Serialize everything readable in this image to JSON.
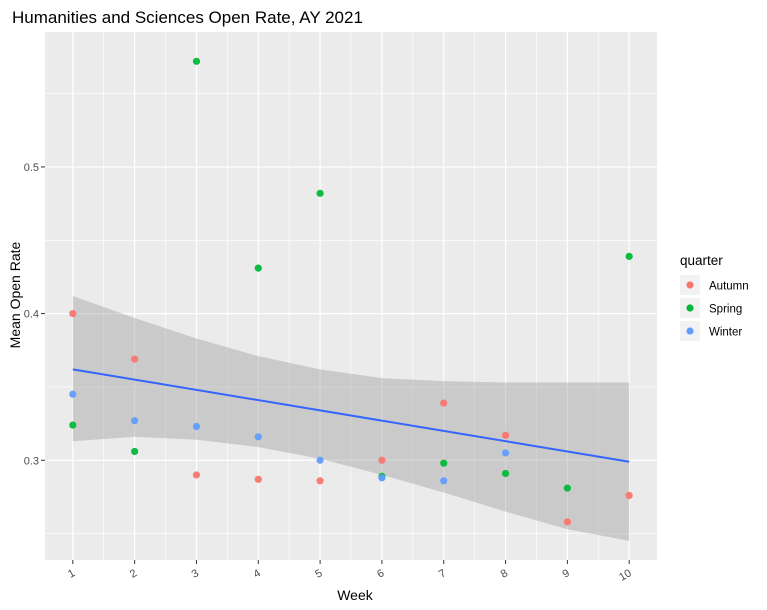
{
  "chart_data": {
    "type": "scatter",
    "title": "Humanities and Sciences Open Rate, AY 2021",
    "xlabel": "Week",
    "ylabel": "Mean Open Rate",
    "xlim": [
      0.55,
      10.45
    ],
    "ylim": [
      0.232,
      0.592
    ],
    "x_ticks": [
      1,
      2,
      3,
      4,
      5,
      6,
      7,
      8,
      9,
      10
    ],
    "y_ticks": [
      0.3,
      0.4,
      0.5
    ],
    "y_tick_labels": [
      "0.3",
      "0.4",
      "0.5"
    ],
    "grid": true,
    "legend": {
      "title": "quarter",
      "position": "right",
      "entries": [
        "Autumn",
        "Spring",
        "Winter"
      ]
    },
    "series": [
      {
        "name": "Autumn",
        "color": "#F8766D",
        "points": [
          [
            1,
            0.4
          ],
          [
            2,
            0.369
          ],
          [
            3,
            0.29
          ],
          [
            4,
            0.287
          ],
          [
            5,
            0.286
          ],
          [
            6,
            0.3
          ],
          [
            7,
            0.339
          ],
          [
            8,
            0.317
          ],
          [
            9,
            0.258
          ],
          [
            10,
            0.276
          ]
        ]
      },
      {
        "name": "Spring",
        "color": "#00BA38",
        "points": [
          [
            1,
            0.324
          ],
          [
            2,
            0.306
          ],
          [
            3,
            0.572
          ],
          [
            4,
            0.431
          ],
          [
            5,
            0.482
          ],
          [
            6,
            0.289
          ],
          [
            7,
            0.298
          ],
          [
            8,
            0.291
          ],
          [
            9,
            0.281
          ],
          [
            10,
            0.439
          ]
        ]
      },
      {
        "name": "Winter",
        "color": "#619CFF",
        "points": [
          [
            1,
            0.345
          ],
          [
            2,
            0.327
          ],
          [
            3,
            0.323
          ],
          [
            4,
            0.316
          ],
          [
            5,
            0.3
          ],
          [
            6,
            0.288
          ],
          [
            7,
            0.286
          ],
          [
            8,
            0.305
          ]
        ]
      }
    ],
    "trend": {
      "color": "#3366FF",
      "start": [
        1,
        0.362
      ],
      "end": [
        10,
        0.299
      ]
    },
    "confidence_band": {
      "color": "#999999",
      "upper": [
        [
          1,
          0.412
        ],
        [
          2,
          0.397
        ],
        [
          3,
          0.383
        ],
        [
          4,
          0.371
        ],
        [
          5,
          0.362
        ],
        [
          6,
          0.356
        ],
        [
          7,
          0.354
        ],
        [
          8,
          0.353
        ],
        [
          9,
          0.353
        ],
        [
          10,
          0.353
        ]
      ],
      "lower": [
        [
          1,
          0.313
        ],
        [
          2,
          0.316
        ],
        [
          3,
          0.314
        ],
        [
          4,
          0.309
        ],
        [
          5,
          0.301
        ],
        [
          6,
          0.29
        ],
        [
          7,
          0.278
        ],
        [
          8,
          0.265
        ],
        [
          9,
          0.253
        ],
        [
          10,
          0.245
        ]
      ]
    }
  }
}
